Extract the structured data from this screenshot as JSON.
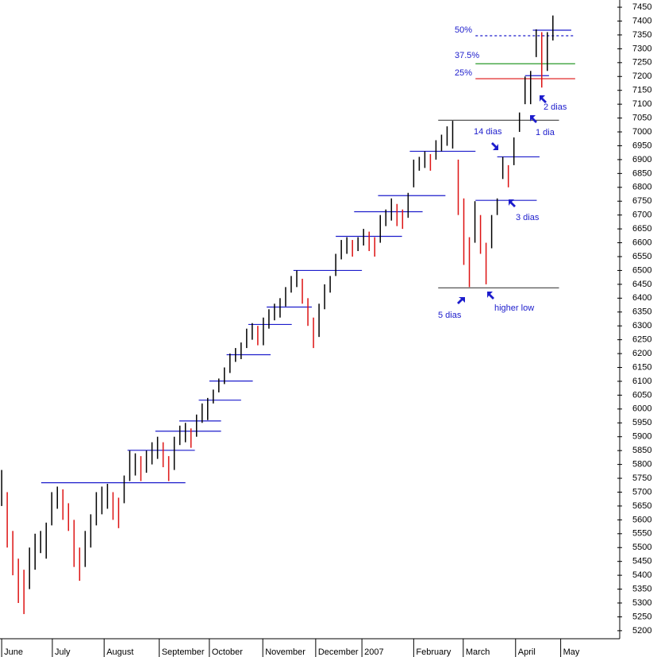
{
  "chart_data": {
    "type": "range-bar",
    "xlim": [
      -0.3,
      111
    ],
    "ylim": [
      5171,
      7476
    ],
    "yticks": [
      5200,
      5250,
      5300,
      5350,
      5400,
      5450,
      5500,
      5550,
      5600,
      5650,
      5700,
      5750,
      5800,
      5850,
      5900,
      5950,
      6000,
      6050,
      6100,
      6150,
      6200,
      6250,
      6300,
      6350,
      6400,
      6450,
      6500,
      6550,
      6600,
      6650,
      6700,
      6750,
      6800,
      6850,
      6900,
      6950,
      7000,
      7050,
      7100,
      7150,
      7200,
      7250,
      7300,
      7350,
      7400,
      7450
    ],
    "xticks": [
      {
        "value": 0,
        "label": "June"
      },
      {
        "value": 9.1,
        "label": "July"
      },
      {
        "value": 18.4,
        "label": "August"
      },
      {
        "value": 28.3,
        "label": "September"
      },
      {
        "value": 37.3,
        "label": "October"
      },
      {
        "value": 46.9,
        "label": "November"
      },
      {
        "value": 56.4,
        "label": "December"
      },
      {
        "value": 64.7,
        "label": "2007"
      },
      {
        "value": 74,
        "label": "February"
      },
      {
        "value": 82.9,
        "label": "March"
      },
      {
        "value": 92.3,
        "label": "April"
      },
      {
        "value": 100.4,
        "label": "May"
      }
    ],
    "up_color": "#000000",
    "down_color": "#dd1111",
    "high": [
      5780,
      5700,
      5560,
      5460,
      5420,
      5500,
      5550,
      5560,
      5590,
      5700,
      5720,
      5710,
      5660,
      5600,
      5500,
      5560,
      5620,
      5700,
      5720,
      5730,
      5700,
      5680,
      5760,
      5850,
      5840,
      5830,
      5850,
      5880,
      5900,
      5880,
      5830,
      5900,
      5940,
      5950,
      5930,
      5980,
      6020,
      6040,
      6070,
      6110,
      6150,
      6200,
      6220,
      6240,
      6290,
      6310,
      6300,
      6330,
      6360,
      6380,
      6400,
      6440,
      6480,
      6500,
      6470,
      6400,
      6330,
      6380,
      6450,
      6480,
      6560,
      6610,
      6620,
      6610,
      6620,
      6650,
      6640,
      6620,
      6700,
      6720,
      6760,
      6740,
      6720,
      6780,
      6900,
      6910,
      6930,
      6920,
      6970,
      6990,
      7020,
      7040,
      6900,
      6760,
      6620,
      6750,
      6700,
      6600,
      6700,
      6760,
      6910,
      6880,
      6980,
      7070,
      7200,
      7220,
      7370,
      7360,
      7360,
      7420
    ],
    "low": [
      5650,
      5500,
      5400,
      5300,
      5260,
      5350,
      5420,
      5480,
      5460,
      5580,
      5640,
      5600,
      5560,
      5430,
      5380,
      5430,
      5500,
      5580,
      5620,
      5640,
      5600,
      5570,
      5660,
      5740,
      5760,
      5740,
      5770,
      5800,
      5820,
      5790,
      5740,
      5780,
      5870,
      5880,
      5860,
      5900,
      5950,
      5960,
      6020,
      6060,
      6090,
      6130,
      6170,
      6180,
      6220,
      6250,
      6230,
      6230,
      6290,
      6320,
      6330,
      6370,
      6420,
      6440,
      6380,
      6300,
      6220,
      6260,
      6360,
      6420,
      6480,
      6540,
      6560,
      6550,
      6570,
      6590,
      6570,
      6550,
      6600,
      6660,
      6680,
      6660,
      6650,
      6690,
      6800,
      6860,
      6870,
      6860,
      6900,
      6930,
      6950,
      6940,
      6700,
      6520,
      6440,
      6600,
      6560,
      6450,
      6580,
      6700,
      6830,
      6800,
      6880,
      7000,
      7100,
      7100,
      7270,
      7160,
      7220,
      7330
    ],
    "levels": [
      {
        "value": 5734,
        "from": 7.1,
        "to": 33,
        "color": "#1c1ccc"
      },
      {
        "value": 5851,
        "from": 22.6,
        "to": 34.7,
        "color": "#1c1ccc"
      },
      {
        "value": 5920,
        "from": 27.6,
        "to": 39.4,
        "color": "#1c1ccc"
      },
      {
        "value": 5957,
        "from": 31.9,
        "to": 39.4,
        "color": "#1c1ccc"
      },
      {
        "value": 6032,
        "from": 35.4,
        "to": 43,
        "color": "#1c1ccc"
      },
      {
        "value": 6101,
        "from": 37.3,
        "to": 45.1,
        "color": "#1c1ccc"
      },
      {
        "value": 6196,
        "from": 40.4,
        "to": 48.3,
        "color": "#1c1ccc"
      },
      {
        "value": 6305,
        "from": 44.3,
        "to": 52.1,
        "color": "#1c1ccc"
      },
      {
        "value": 6368,
        "from": 47.6,
        "to": 55.7,
        "color": "#1c1ccc"
      },
      {
        "value": 6500,
        "from": 52.4,
        "to": 64.7,
        "color": "#1c1ccc"
      },
      {
        "value": 6623,
        "from": 60,
        "to": 71.9,
        "color": "#1c1ccc"
      },
      {
        "value": 6712,
        "from": 63.3,
        "to": 75.6,
        "color": "#1c1ccc"
      },
      {
        "value": 6770,
        "from": 67.6,
        "to": 79.7,
        "color": "#1c1ccc"
      },
      {
        "value": 6930,
        "from": 73.3,
        "to": 85.1,
        "color": "#1c1ccc"
      },
      {
        "value": 7042,
        "from": 78.4,
        "to": 100.1,
        "color": "#555555"
      },
      {
        "value": 6437,
        "from": 78.4,
        "to": 100.1,
        "color": "#555555"
      },
      {
        "value": 6753,
        "from": 85.1,
        "to": 96.1,
        "color": "#1c1ccc"
      },
      {
        "value": 6910,
        "from": 89,
        "to": 96.6,
        "color": "#1c1ccc"
      },
      {
        "value": 7192,
        "from": 85.1,
        "to": 103,
        "color": "#dd1111"
      },
      {
        "value": 7246,
        "from": 85.1,
        "to": 103,
        "color": "#2a9a2a"
      },
      {
        "value": 7347,
        "from": 85.1,
        "to": 103,
        "color": "#1c1ccc",
        "dashed": true
      },
      {
        "value": 7367,
        "from": 95.4,
        "to": 102.3,
        "color": "#1c1ccc"
      },
      {
        "value": 7203,
        "from": 94,
        "to": 98.3,
        "color": "#1c1ccc"
      }
    ],
    "annotations": [
      "50%",
      "37.5%",
      "25%",
      "2 dias",
      "1 dia",
      "14 dias",
      "3 dias",
      "5 dias",
      "higher low"
    ]
  }
}
